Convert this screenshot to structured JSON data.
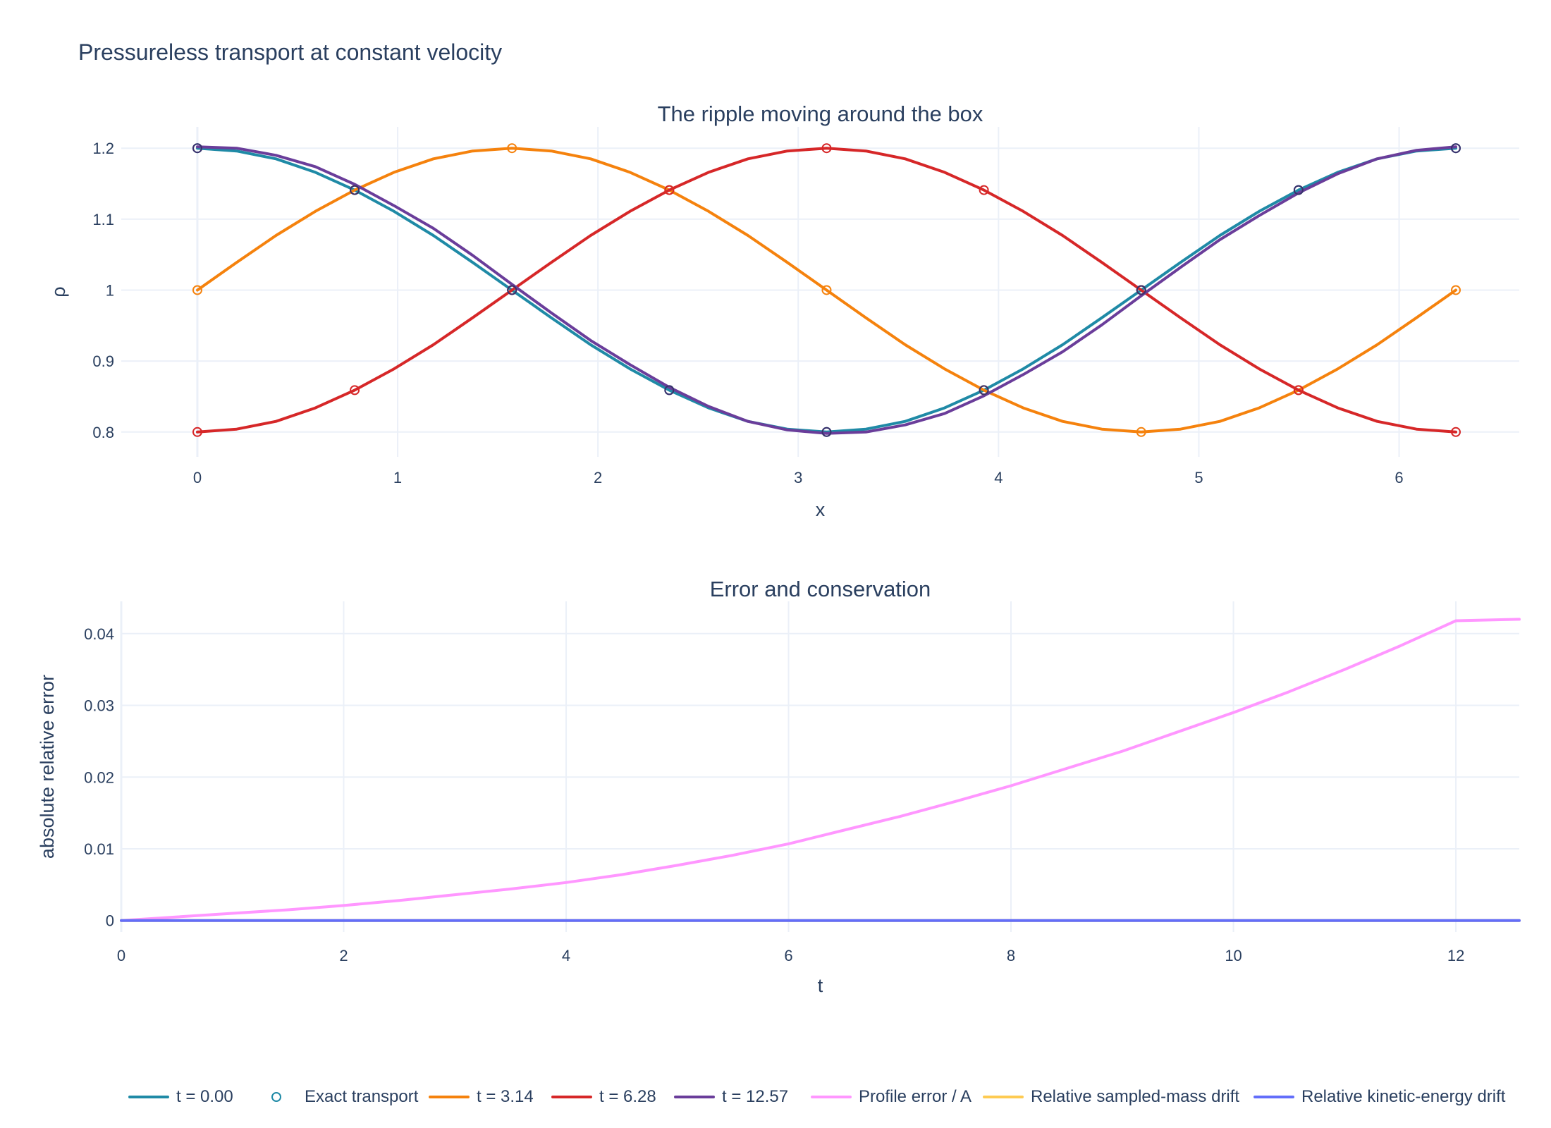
{
  "title": "Pressureless transport at constant velocity",
  "chart_data": [
    {
      "type": "line",
      "title": "The ripple moving around the box",
      "xlabel": "x",
      "ylabel": "ρ",
      "xlim": [
        -0.38,
        6.6
      ],
      "ylim": [
        0.765,
        1.23
      ],
      "xticks": [
        0,
        1,
        2,
        3,
        4,
        5,
        6
      ],
      "xtick_labels": [
        "0",
        "1",
        "2",
        "3",
        "4",
        "5",
        "6"
      ],
      "yticks": [
        0.8,
        0.9,
        1.0,
        1.1,
        1.2
      ],
      "ytick_labels": [
        "0.8",
        "0.9",
        "1",
        "1.1",
        "1.2"
      ],
      "grid": true,
      "x": [
        0,
        0.1963,
        0.3927,
        0.589,
        0.7854,
        0.9817,
        1.1781,
        1.3744,
        1.5708,
        1.7671,
        1.9635,
        2.1598,
        2.3562,
        2.5525,
        2.7489,
        2.9452,
        3.1416,
        3.3379,
        3.5343,
        3.7306,
        3.927,
        4.1233,
        4.3197,
        4.516,
        4.7124,
        4.9087,
        5.1051,
        5.3014,
        5.4978,
        5.6941,
        5.8905,
        6.0868,
        6.2832
      ],
      "series": [
        {
          "name": "t = 0.00",
          "color": "#1f8aa6",
          "values": [
            1.2,
            1.196,
            1.185,
            1.166,
            1.141,
            1.111,
            1.077,
            1.039,
            1.0,
            0.961,
            0.923,
            0.889,
            0.859,
            0.834,
            0.815,
            0.804,
            0.8,
            0.804,
            0.815,
            0.834,
            0.859,
            0.889,
            0.923,
            0.961,
            1.0,
            1.039,
            1.077,
            1.111,
            1.141,
            1.166,
            1.185,
            1.196,
            1.2
          ]
        },
        {
          "name": "t = 3.14",
          "color": "#f5820d",
          "values": [
            1.0,
            1.039,
            1.077,
            1.111,
            1.141,
            1.166,
            1.185,
            1.196,
            1.2,
            1.196,
            1.185,
            1.166,
            1.141,
            1.111,
            1.077,
            1.039,
            1.0,
            0.961,
            0.923,
            0.889,
            0.859,
            0.834,
            0.815,
            0.804,
            0.8,
            0.804,
            0.815,
            0.834,
            0.859,
            0.889,
            0.923,
            0.961,
            1.0
          ]
        },
        {
          "name": "t = 6.28",
          "color": "#d62728",
          "values": [
            0.8,
            0.804,
            0.815,
            0.834,
            0.859,
            0.889,
            0.923,
            0.961,
            1.0,
            1.039,
            1.077,
            1.111,
            1.141,
            1.166,
            1.185,
            1.196,
            1.2,
            1.196,
            1.185,
            1.166,
            1.141,
            1.111,
            1.077,
            1.039,
            1.0,
            0.961,
            0.923,
            0.889,
            0.859,
            0.834,
            0.815,
            0.804,
            0.8
          ]
        },
        {
          "name": "t = 12.57",
          "color": "#6a3d9a",
          "values": [
            1.202,
            1.2,
            1.19,
            1.174,
            1.149,
            1.119,
            1.087,
            1.049,
            1.008,
            0.968,
            0.929,
            0.895,
            0.863,
            0.836,
            0.815,
            0.803,
            0.798,
            0.8,
            0.81,
            0.826,
            0.851,
            0.881,
            0.913,
            0.951,
            0.992,
            1.032,
            1.071,
            1.105,
            1.137,
            1.164,
            1.185,
            1.197,
            1.202
          ]
        }
      ],
      "exact_transport": {
        "name": "Exact transport",
        "x": [
          0,
          0.7854,
          1.5708,
          2.3562,
          3.1416,
          3.927,
          4.7124,
          5.4978,
          6.2832
        ],
        "sets": [
          {
            "color": "#1f8aa6",
            "values": [
              1.2,
              1.141,
              1.0,
              0.859,
              0.8,
              0.859,
              1.0,
              1.141,
              1.2
            ]
          },
          {
            "color": "#f5820d",
            "values": [
              1.0,
              1.141,
              1.2,
              1.141,
              1.0,
              0.859,
              0.8,
              0.859,
              1.0
            ]
          },
          {
            "color": "#d62728",
            "values": [
              0.8,
              0.859,
              1.0,
              1.141,
              1.2,
              1.141,
              1.0,
              0.859,
              0.8
            ]
          },
          {
            "color": "#3b2f6b",
            "values": [
              1.2,
              1.141,
              1.0,
              0.859,
              0.8,
              0.859,
              1.0,
              1.141,
              1.2
            ]
          }
        ]
      }
    },
    {
      "type": "line",
      "title": "Error and conservation",
      "xlabel": "t",
      "ylabel": "absolute relative error",
      "xlim": [
        0,
        12.57
      ],
      "ylim": [
        -0.0016,
        0.0445
      ],
      "xticks": [
        0,
        2,
        4,
        6,
        8,
        10,
        12
      ],
      "xtick_labels": [
        "0",
        "2",
        "4",
        "6",
        "8",
        "10",
        "12"
      ],
      "yticks": [
        0,
        0.01,
        0.02,
        0.03,
        0.04
      ],
      "ytick_labels": [
        "0",
        "0.01",
        "0.02",
        "0.03",
        "0.04"
      ],
      "grid": true,
      "x": [
        0,
        0.5,
        1,
        1.5,
        2,
        2.5,
        3,
        3.5,
        4,
        4.5,
        5,
        5.5,
        6,
        6.5,
        7,
        7.5,
        8,
        8.5,
        9,
        9.5,
        10,
        10.5,
        11,
        11.5,
        12,
        12.57
      ],
      "series": [
        {
          "name": "Profile error / A",
          "color": "#ff97ff",
          "values": [
            0,
            0.0005,
            0.001,
            0.0015,
            0.0021,
            0.0028,
            0.0036,
            0.0044,
            0.0053,
            0.0064,
            0.0077,
            0.0091,
            0.0107,
            0.0126,
            0.0145,
            0.0166,
            0.0188,
            0.0212,
            0.0236,
            0.0263,
            0.029,
            0.0319,
            0.035,
            0.0383,
            0.0418,
            0.042
          ]
        },
        {
          "name": "Relative sampled-mass drift",
          "color": "#fecb52",
          "values": [
            0,
            0,
            0,
            0,
            0,
            0,
            0,
            0,
            0,
            0,
            0,
            0,
            0,
            0,
            0,
            0,
            0,
            0,
            0,
            0,
            0,
            0,
            0,
            0,
            0,
            0
          ]
        },
        {
          "name": "Relative kinetic-energy drift",
          "color": "#636efa",
          "values": [
            0,
            0,
            0,
            0,
            0,
            0,
            0,
            0,
            0,
            0,
            0,
            0,
            0,
            0,
            0,
            0,
            0,
            0,
            0,
            0,
            0,
            0,
            0,
            0,
            0,
            0
          ]
        }
      ]
    }
  ],
  "legend": {
    "placement": "bottom",
    "items": [
      {
        "label": "t = 0.00",
        "kind": "line",
        "color": "#1f8aa6"
      },
      {
        "label": "Exact transport",
        "kind": "marker",
        "color": "#1f8aa6"
      },
      {
        "label": "t = 3.14",
        "kind": "line",
        "color": "#f5820d"
      },
      {
        "label": "t = 6.28",
        "kind": "line",
        "color": "#d62728"
      },
      {
        "label": "t = 12.57",
        "kind": "line",
        "color": "#6a3d9a"
      },
      {
        "label": "Profile error / A",
        "kind": "line",
        "color": "#ff97ff"
      },
      {
        "label": "Relative sampled-mass drift",
        "kind": "line",
        "color": "#fecb52"
      },
      {
        "label": "Relative kinetic-energy drift",
        "kind": "line",
        "color": "#636efa"
      }
    ]
  }
}
